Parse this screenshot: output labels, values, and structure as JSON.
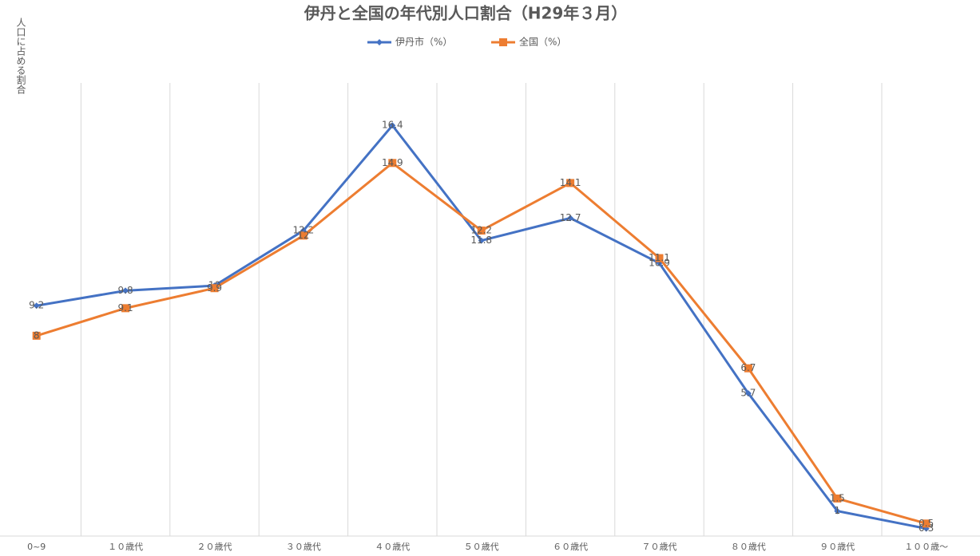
{
  "chart_data": {
    "type": "line",
    "title": "伊丹と全国の年代別人口割合（H29年３月）",
    "y_label": "人口に占める割合",
    "categories": [
      "0~9",
      "１０歳代",
      "２０歳代",
      "３０歳代",
      "４０歳代",
      "５０歳代",
      "６０歳代",
      "７０歳代",
      "８０歳代",
      "９０歳代",
      "１００歳～"
    ],
    "series": [
      {
        "name": "伊丹市（%）",
        "color": "#4472c4",
        "marker": "diamond",
        "values": [
          9.2,
          9.8,
          10.0,
          12.2,
          16.4,
          11.8,
          12.7,
          10.9,
          5.7,
          1.0,
          0.3
        ]
      },
      {
        "name": "全国（%）",
        "color": "#ed7d31",
        "marker": "square",
        "values": [
          8.0,
          9.1,
          9.9,
          12.0,
          14.9,
          12.2,
          14.1,
          11.1,
          6.7,
          1.5,
          0.5
        ]
      }
    ],
    "ylim": [
      0,
      18
    ]
  }
}
